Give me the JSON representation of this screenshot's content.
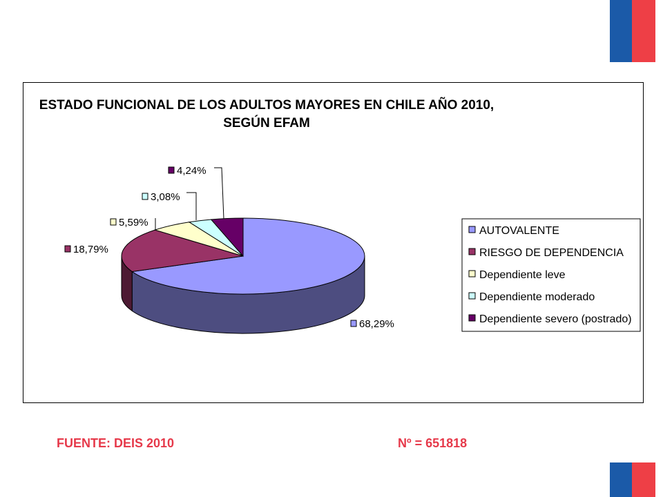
{
  "colors": {
    "flag_blue": "#1b5aa8",
    "flag_red": "#ee3f46",
    "footer_text": "#e6394a"
  },
  "chart_data": {
    "type": "pie",
    "style": "3d",
    "title_lines": [
      "ESTADO FUNCIONAL DE LOS ADULTOS MAYORES EN CHILE AÑO 2010,",
      "SEGÚN EFAM"
    ],
    "legend_position": "right",
    "slices": [
      {
        "label": "AUTOVALENTE",
        "value": 68.29,
        "value_label": "68,29%",
        "color": "#9999ff",
        "side_color": "#4d4d80"
      },
      {
        "label": "RIESGO DE DEPENDENCIA",
        "value": 18.79,
        "value_label": "18,79%",
        "color": "#993366",
        "side_color": "#4d1a33"
      },
      {
        "label": "Dependiente leve",
        "value": 5.59,
        "value_label": "5,59%",
        "color": "#ffffcc",
        "side_color": "#808066"
      },
      {
        "label": "Dependiente moderado",
        "value": 3.08,
        "value_label": "3,08%",
        "color": "#ccffff",
        "side_color": "#668080"
      },
      {
        "label": "Dependiente severo (postrado)",
        "value": 4.24,
        "value_label": "4,24%",
        "color": "#660066",
        "side_color": "#330033"
      }
    ]
  },
  "footer": {
    "source": "FUENTE: DEIS 2010",
    "total": "Nº =  651818"
  }
}
